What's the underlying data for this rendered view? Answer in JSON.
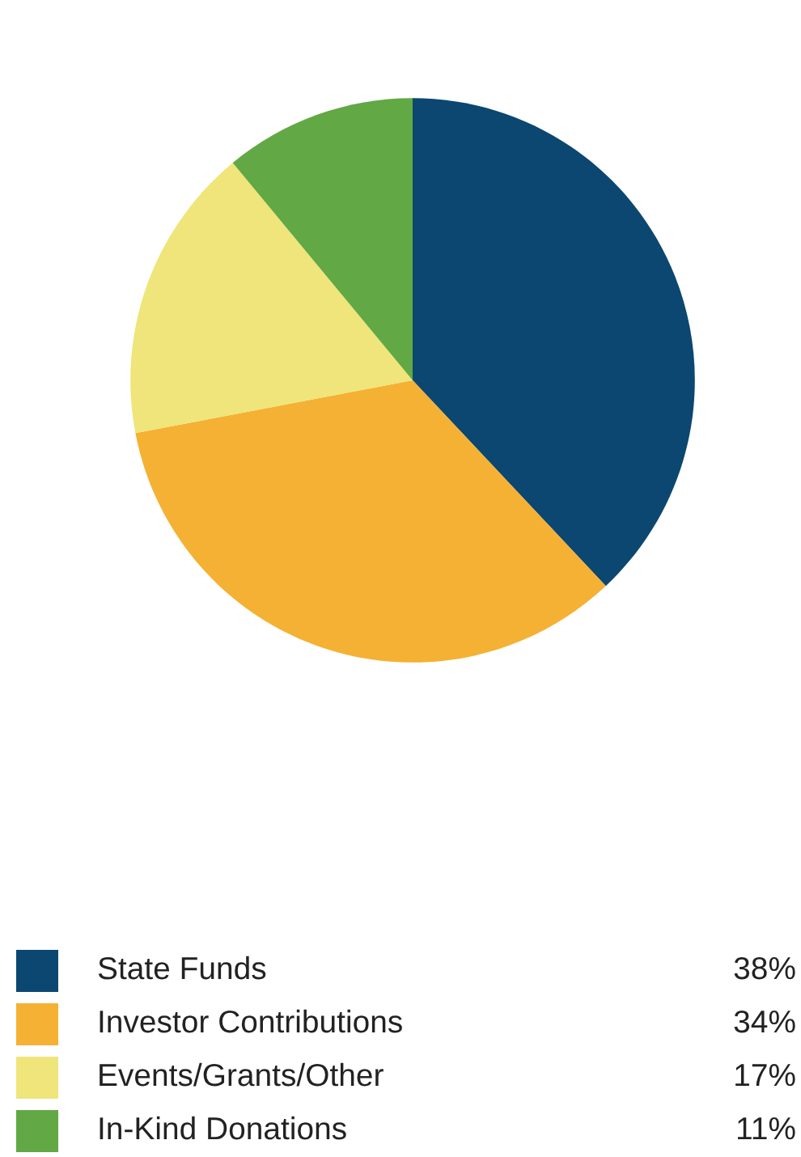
{
  "chart_data": {
    "type": "pie",
    "categories": [
      "State Funds",
      "Investor Contributions",
      "Events/Grants/Other",
      "In-Kind Donations"
    ],
    "values": [
      38,
      34,
      17,
      11
    ],
    "colors": [
      "#0b4770",
      "#f5b133",
      "#efe57a",
      "#62a844"
    ],
    "legend": "bottom",
    "value_labels": [
      "38%",
      "34%",
      "17%",
      "11%"
    ]
  }
}
